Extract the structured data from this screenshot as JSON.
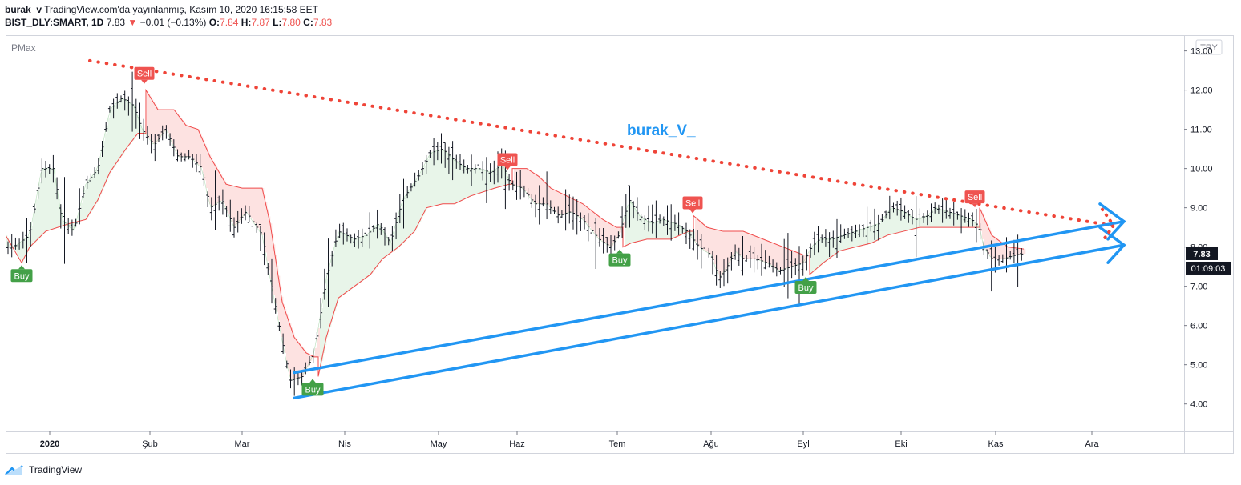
{
  "header": {
    "author": "burak_v",
    "published": "TradingView.com'da yayınlanmış, Kasım 10, 2020 16:15:58 EET",
    "symbol": "BIST_DLY:SMART, 1D",
    "last": "7.83",
    "change": "−0.01 (−0.13%)",
    "o_label": "O:",
    "o": "7.84",
    "h_label": "H:",
    "h": "7.87",
    "l_label": "L:",
    "l": "7.80",
    "c_label": "C:",
    "c": "7.83"
  },
  "chart": {
    "indicator_label": "PMax",
    "currency": "TRY",
    "watermark": "burak_V_",
    "price_tag": "7.83",
    "countdown": "01:09:03"
  },
  "footer": {
    "brand": "TradingView"
  },
  "colors": {
    "up_fill": "#e8f5e9",
    "down_fill": "#fde2e1",
    "line": "#f04a4a",
    "trend_blue": "#2196f3",
    "trend_red": "#ef4438",
    "buy": "#43a047",
    "sell": "#ef5350"
  },
  "chart_data": {
    "type": "candlestick",
    "ylim": [
      3.3,
      13.4
    ],
    "yticks": [
      4,
      5,
      6,
      7,
      8,
      9,
      10,
      11,
      12,
      13
    ],
    "ytick_labels": [
      "4.00",
      "5.00",
      "6.00",
      "7.00",
      "8.00",
      "9.00",
      "10.00",
      "11.00",
      "12.00",
      "13.00"
    ],
    "xlim": [
      0,
      1470
    ],
    "month_ticks": [
      {
        "label": "2020",
        "x": 55
      },
      {
        "label": "Şub",
        "x": 180
      },
      {
        "label": "Mar",
        "x": 295
      },
      {
        "label": "Nis",
        "x": 423
      },
      {
        "label": "May",
        "x": 540
      },
      {
        "label": "Haz",
        "x": 638
      },
      {
        "label": "Tem",
        "x": 763
      },
      {
        "label": "Ağu",
        "x": 880
      },
      {
        "label": "Eyl",
        "x": 995
      },
      {
        "label": "Eki",
        "x": 1117
      },
      {
        "label": "Kas",
        "x": 1235
      },
      {
        "label": "Ara",
        "x": 1355
      }
    ],
    "close_path": [
      [
        10,
        8.0
      ],
      [
        30,
        8.3
      ],
      [
        45,
        10.0
      ],
      [
        60,
        10.0
      ],
      [
        70,
        8.7
      ],
      [
        85,
        8.4
      ],
      [
        100,
        9.6
      ],
      [
        115,
        10.0
      ],
      [
        130,
        11.5
      ],
      [
        145,
        11.8
      ],
      [
        160,
        11.6
      ],
      [
        170,
        11.0
      ],
      [
        185,
        10.6
      ],
      [
        200,
        11.0
      ],
      [
        215,
        10.3
      ],
      [
        230,
        10.3
      ],
      [
        245,
        10.0
      ],
      [
        255,
        9.0
      ],
      [
        270,
        9.2
      ],
      [
        285,
        8.5
      ],
      [
        300,
        8.9
      ],
      [
        320,
        8.3
      ],
      [
        330,
        7.2
      ],
      [
        345,
        5.6
      ],
      [
        355,
        4.6
      ],
      [
        370,
        4.7
      ],
      [
        385,
        5.3
      ],
      [
        400,
        7.2
      ],
      [
        415,
        8.4
      ],
      [
        435,
        8.2
      ],
      [
        450,
        8.3
      ],
      [
        465,
        8.6
      ],
      [
        480,
        8.1
      ],
      [
        495,
        9.2
      ],
      [
        515,
        9.8
      ],
      [
        530,
        10.4
      ],
      [
        545,
        10.5
      ],
      [
        560,
        10.2
      ],
      [
        575,
        10.0
      ],
      [
        590,
        10.0
      ],
      [
        605,
        9.9
      ],
      [
        620,
        10.1
      ],
      [
        630,
        9.6
      ],
      [
        645,
        9.5
      ],
      [
        660,
        9.1
      ],
      [
        675,
        9.1
      ],
      [
        690,
        8.8
      ],
      [
        705,
        8.9
      ],
      [
        720,
        8.7
      ],
      [
        740,
        8.2
      ],
      [
        755,
        8.0
      ],
      [
        765,
        8.3
      ],
      [
        778,
        9.2
      ],
      [
        790,
        8.8
      ],
      [
        805,
        8.6
      ],
      [
        820,
        8.7
      ],
      [
        835,
        8.6
      ],
      [
        850,
        8.4
      ],
      [
        865,
        8.0
      ],
      [
        880,
        7.8
      ],
      [
        890,
        7.2
      ],
      [
        900,
        7.5
      ],
      [
        910,
        7.9
      ],
      [
        920,
        7.7
      ],
      [
        935,
        7.7
      ],
      [
        950,
        7.6
      ],
      [
        965,
        7.4
      ],
      [
        980,
        7.5
      ],
      [
        995,
        7.6
      ],
      [
        1005,
        8.0
      ],
      [
        1015,
        8.2
      ],
      [
        1030,
        8.2
      ],
      [
        1045,
        8.3
      ],
      [
        1060,
        8.4
      ],
      [
        1075,
        8.5
      ],
      [
        1090,
        8.6
      ],
      [
        1105,
        9.0
      ],
      [
        1120,
        8.9
      ],
      [
        1135,
        8.7
      ],
      [
        1150,
        8.8
      ],
      [
        1160,
        9.0
      ],
      [
        1175,
        8.9
      ],
      [
        1190,
        8.8
      ],
      [
        1205,
        8.7
      ],
      [
        1215,
        8.5
      ],
      [
        1220,
        8.0
      ],
      [
        1230,
        7.7
      ],
      [
        1245,
        7.7
      ],
      [
        1260,
        7.8
      ],
      [
        1270,
        7.83
      ]
    ],
    "pmax_band": [
      [
        0,
        8.3,
        "up"
      ],
      [
        20,
        7.6,
        "up"
      ],
      [
        30,
        8.0,
        "up"
      ],
      [
        50,
        8.4,
        "up"
      ],
      [
        80,
        8.6,
        "up"
      ],
      [
        100,
        8.7,
        "up"
      ],
      [
        115,
        9.2,
        "up"
      ],
      [
        130,
        9.9,
        "up"
      ],
      [
        150,
        10.5,
        "up"
      ],
      [
        165,
        10.9,
        "up"
      ],
      [
        175,
        12.0,
        "down"
      ],
      [
        190,
        11.5,
        "down"
      ],
      [
        210,
        11.5,
        "down"
      ],
      [
        225,
        11.1,
        "down"
      ],
      [
        240,
        11.0,
        "down"
      ],
      [
        255,
        10.3,
        "down"
      ],
      [
        275,
        9.6,
        "down"
      ],
      [
        295,
        9.5,
        "down"
      ],
      [
        320,
        9.5,
        "down"
      ],
      [
        330,
        8.6,
        "down"
      ],
      [
        345,
        6.6,
        "down"
      ],
      [
        360,
        5.7,
        "down"
      ],
      [
        375,
        5.3,
        "down"
      ],
      [
        385,
        5.2,
        "down"
      ],
      [
        390,
        4.7,
        "up"
      ],
      [
        400,
        5.7,
        "up"
      ],
      [
        415,
        6.7,
        "up"
      ],
      [
        435,
        7.0,
        "up"
      ],
      [
        455,
        7.3,
        "up"
      ],
      [
        470,
        7.7,
        "up"
      ],
      [
        490,
        8.0,
        "up"
      ],
      [
        510,
        8.4,
        "up"
      ],
      [
        525,
        9.0,
        "up"
      ],
      [
        545,
        9.1,
        "up"
      ],
      [
        560,
        9.1,
        "up"
      ],
      [
        580,
        9.3,
        "up"
      ],
      [
        610,
        9.5,
        "up"
      ],
      [
        628,
        9.6,
        "up"
      ],
      [
        632,
        10.0,
        "down"
      ],
      [
        650,
        10.0,
        "down"
      ],
      [
        665,
        9.8,
        "down"
      ],
      [
        680,
        9.5,
        "down"
      ],
      [
        700,
        9.3,
        "down"
      ],
      [
        720,
        9.1,
        "down"
      ],
      [
        745,
        8.7,
        "down"
      ],
      [
        762,
        8.5,
        "down"
      ],
      [
        770,
        8.0,
        "up"
      ],
      [
        780,
        8.1,
        "up"
      ],
      [
        800,
        8.2,
        "up"
      ],
      [
        830,
        8.2,
        "up"
      ],
      [
        852,
        8.4,
        "up"
      ],
      [
        858,
        8.8,
        "down"
      ],
      [
        875,
        8.5,
        "down"
      ],
      [
        895,
        8.4,
        "down"
      ],
      [
        920,
        8.4,
        "down"
      ],
      [
        945,
        8.2,
        "down"
      ],
      [
        970,
        8.0,
        "down"
      ],
      [
        995,
        7.8,
        "down"
      ],
      [
        1003,
        7.3,
        "up"
      ],
      [
        1020,
        7.6,
        "up"
      ],
      [
        1040,
        7.9,
        "up"
      ],
      [
        1060,
        8.0,
        "up"
      ],
      [
        1080,
        8.1,
        "up"
      ],
      [
        1100,
        8.3,
        "up"
      ],
      [
        1120,
        8.4,
        "up"
      ],
      [
        1140,
        8.5,
        "up"
      ],
      [
        1160,
        8.5,
        "up"
      ],
      [
        1180,
        8.5,
        "up"
      ],
      [
        1200,
        8.5,
        "up"
      ],
      [
        1210,
        8.5,
        "up"
      ],
      [
        1215,
        9.0,
        "down"
      ],
      [
        1230,
        8.3,
        "down"
      ],
      [
        1250,
        8.0,
        "down"
      ],
      [
        1270,
        7.95,
        "down"
      ]
    ],
    "signals": [
      {
        "type": "Buy",
        "x": 20,
        "anchor": 7.6,
        "label": "Buy"
      },
      {
        "type": "Sell",
        "x": 173,
        "anchor": 12.1,
        "label": "Sell"
      },
      {
        "type": "Buy",
        "x": 383,
        "anchor": 4.7,
        "label": "Buy"
      },
      {
        "type": "Sell",
        "x": 626,
        "anchor": 9.9,
        "label": "Sell"
      },
      {
        "type": "Buy",
        "x": 766,
        "anchor": 8.0,
        "label": "Buy"
      },
      {
        "type": "Sell",
        "x": 857,
        "anchor": 8.8,
        "label": "Sell"
      },
      {
        "type": "Buy",
        "x": 998,
        "anchor": 7.3,
        "label": "Buy"
      },
      {
        "type": "Sell",
        "x": 1209,
        "anchor": 8.95,
        "label": "Sell"
      }
    ],
    "trendlines": [
      {
        "name": "resistance",
        "style": "dotted",
        "color": "red",
        "x1": 105,
        "y1": 12.75,
        "x2": 1380,
        "y2": 8.55
      },
      {
        "name": "support-upper",
        "style": "solid",
        "color": "blue",
        "x1": 360,
        "y1": 4.8,
        "x2": 1395,
        "y2": 8.65
      },
      {
        "name": "support-lower",
        "style": "solid",
        "color": "blue",
        "x1": 360,
        "y1": 4.15,
        "x2": 1395,
        "y2": 8.05
      }
    ]
  }
}
